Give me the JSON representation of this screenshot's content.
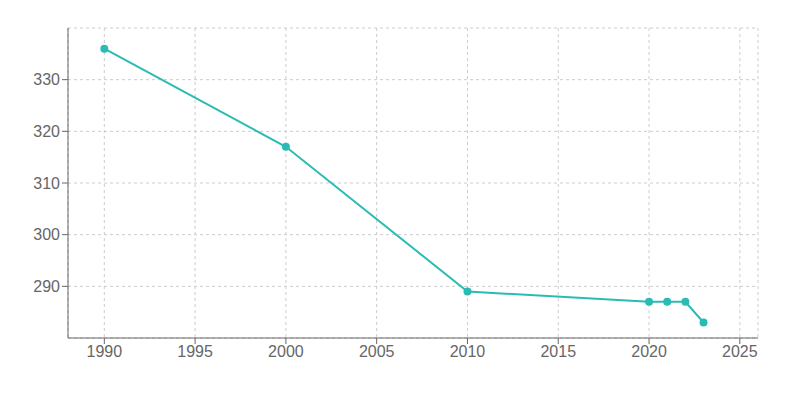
{
  "chart_data": {
    "type": "line",
    "x": [
      1990,
      2000,
      2010,
      2020,
      2021,
      2022,
      2023
    ],
    "values": [
      336,
      317,
      289,
      287,
      287,
      287,
      283
    ],
    "color": "#2abcb4",
    "marker": "circle",
    "xlim": [
      1988,
      2026
    ],
    "xticks": [
      1990,
      1995,
      2000,
      2005,
      2010,
      2015,
      2020,
      2025
    ],
    "ylim": [
      280,
      340
    ],
    "yticks": [
      290,
      300,
      310,
      320,
      330
    ],
    "grid": true
  }
}
